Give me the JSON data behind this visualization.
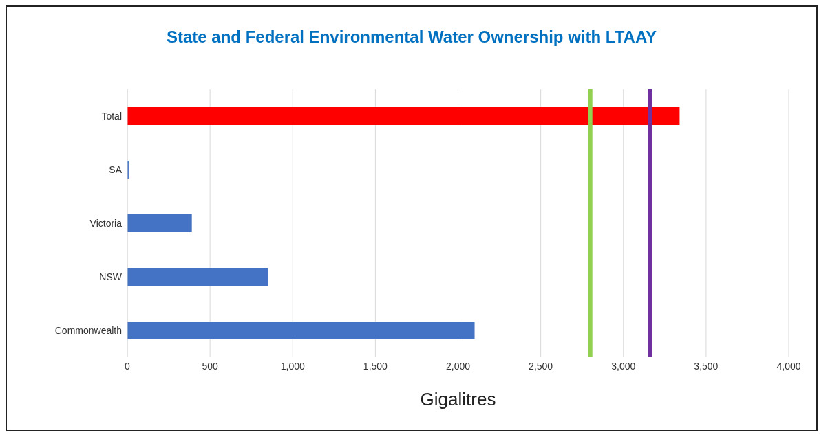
{
  "chart_data": {
    "type": "bar",
    "orientation": "horizontal",
    "title": "State and Federal Environmental Water Ownership with LTAAY",
    "xlabel": "Gigalitres",
    "categories": [
      "Total",
      "SA",
      "Victoria",
      "NSW",
      "Commonwealth"
    ],
    "values": [
      3340,
      8,
      390,
      850,
      2100
    ],
    "colors": [
      "#ff0000",
      "#4472c4",
      "#4472c4",
      "#4472c4",
      "#4472c4"
    ],
    "xlim": [
      0,
      4000
    ],
    "xticks": [
      {
        "value": 0,
        "label": "0"
      },
      {
        "value": 500,
        "label": "500"
      },
      {
        "value": 1000,
        "label": "1,000"
      },
      {
        "value": 1500,
        "label": "1,500"
      },
      {
        "value": 2000,
        "label": "2,000"
      },
      {
        "value": 2500,
        "label": "2,500"
      },
      {
        "value": 3000,
        "label": "3,000"
      },
      {
        "value": 3500,
        "label": "3,500"
      },
      {
        "value": 4000,
        "label": "4,000"
      }
    ],
    "grid": "x",
    "ref_lines": [
      {
        "axis": "x",
        "value": 2800,
        "color": "#92d050"
      },
      {
        "axis": "x",
        "value": 3160,
        "color": "#7030a0"
      }
    ]
  }
}
